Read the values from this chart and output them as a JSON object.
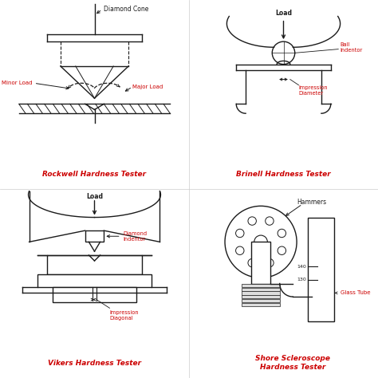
{
  "bg_color": "#ffffff",
  "line_color": "#1a1a1a",
  "red_color": "#cc0000",
  "title_rockwell": "Rockwell Hardness Tester",
  "title_brinell": "Brinell Hardness Tester",
  "title_vikers": "Vikers Hardness Tester",
  "title_shore": "Shore Scleroscope\nHardness Tester",
  "label_diamond_cone": "Diamond Cone",
  "label_minor_load": "Minor Load",
  "label_major_load": "Major Load",
  "label_load_b": "Load",
  "label_ball_indentor": "Ball\nIndentor",
  "label_impression_diameter": "Impression\nDiameter",
  "label_load_v": "Load",
  "label_diamond_indentor": "Diamond\nIndentor",
  "label_impression_diagonal": "Impression\nDiagonal",
  "label_hammers": "Hammers",
  "label_glass_tube": "Glass Tube",
  "label_140": "140",
  "label_130": "130"
}
